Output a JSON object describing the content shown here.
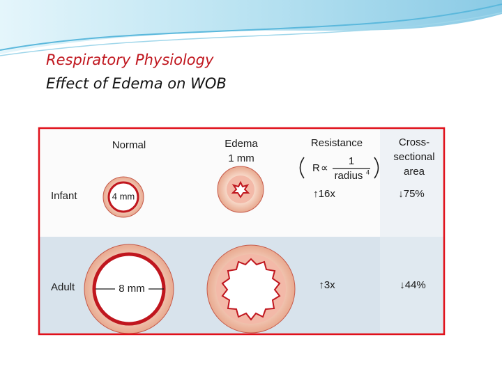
{
  "header": {
    "title": "Respiratory Physiology",
    "subtitle": "Effect of Edema on WOB"
  },
  "figure": {
    "columns": {
      "normal": "Normal",
      "edema": "Edema",
      "edema_thickness": "1 mm",
      "resistance": "Resistance",
      "formula": {
        "lhs": "R",
        "symbol": "∝",
        "numerator": "1",
        "denominator": "radius",
        "exponent": "4"
      },
      "area": [
        "Cross-",
        "sectional",
        "area"
      ]
    },
    "rows": [
      {
        "label": "Infant",
        "diameter": "4 mm",
        "resistance": "↑16x",
        "area": "↓75%"
      },
      {
        "label": "Adult",
        "diameter": "8 mm",
        "resistance": "↑3x",
        "area": "↓44%"
      }
    ]
  }
}
